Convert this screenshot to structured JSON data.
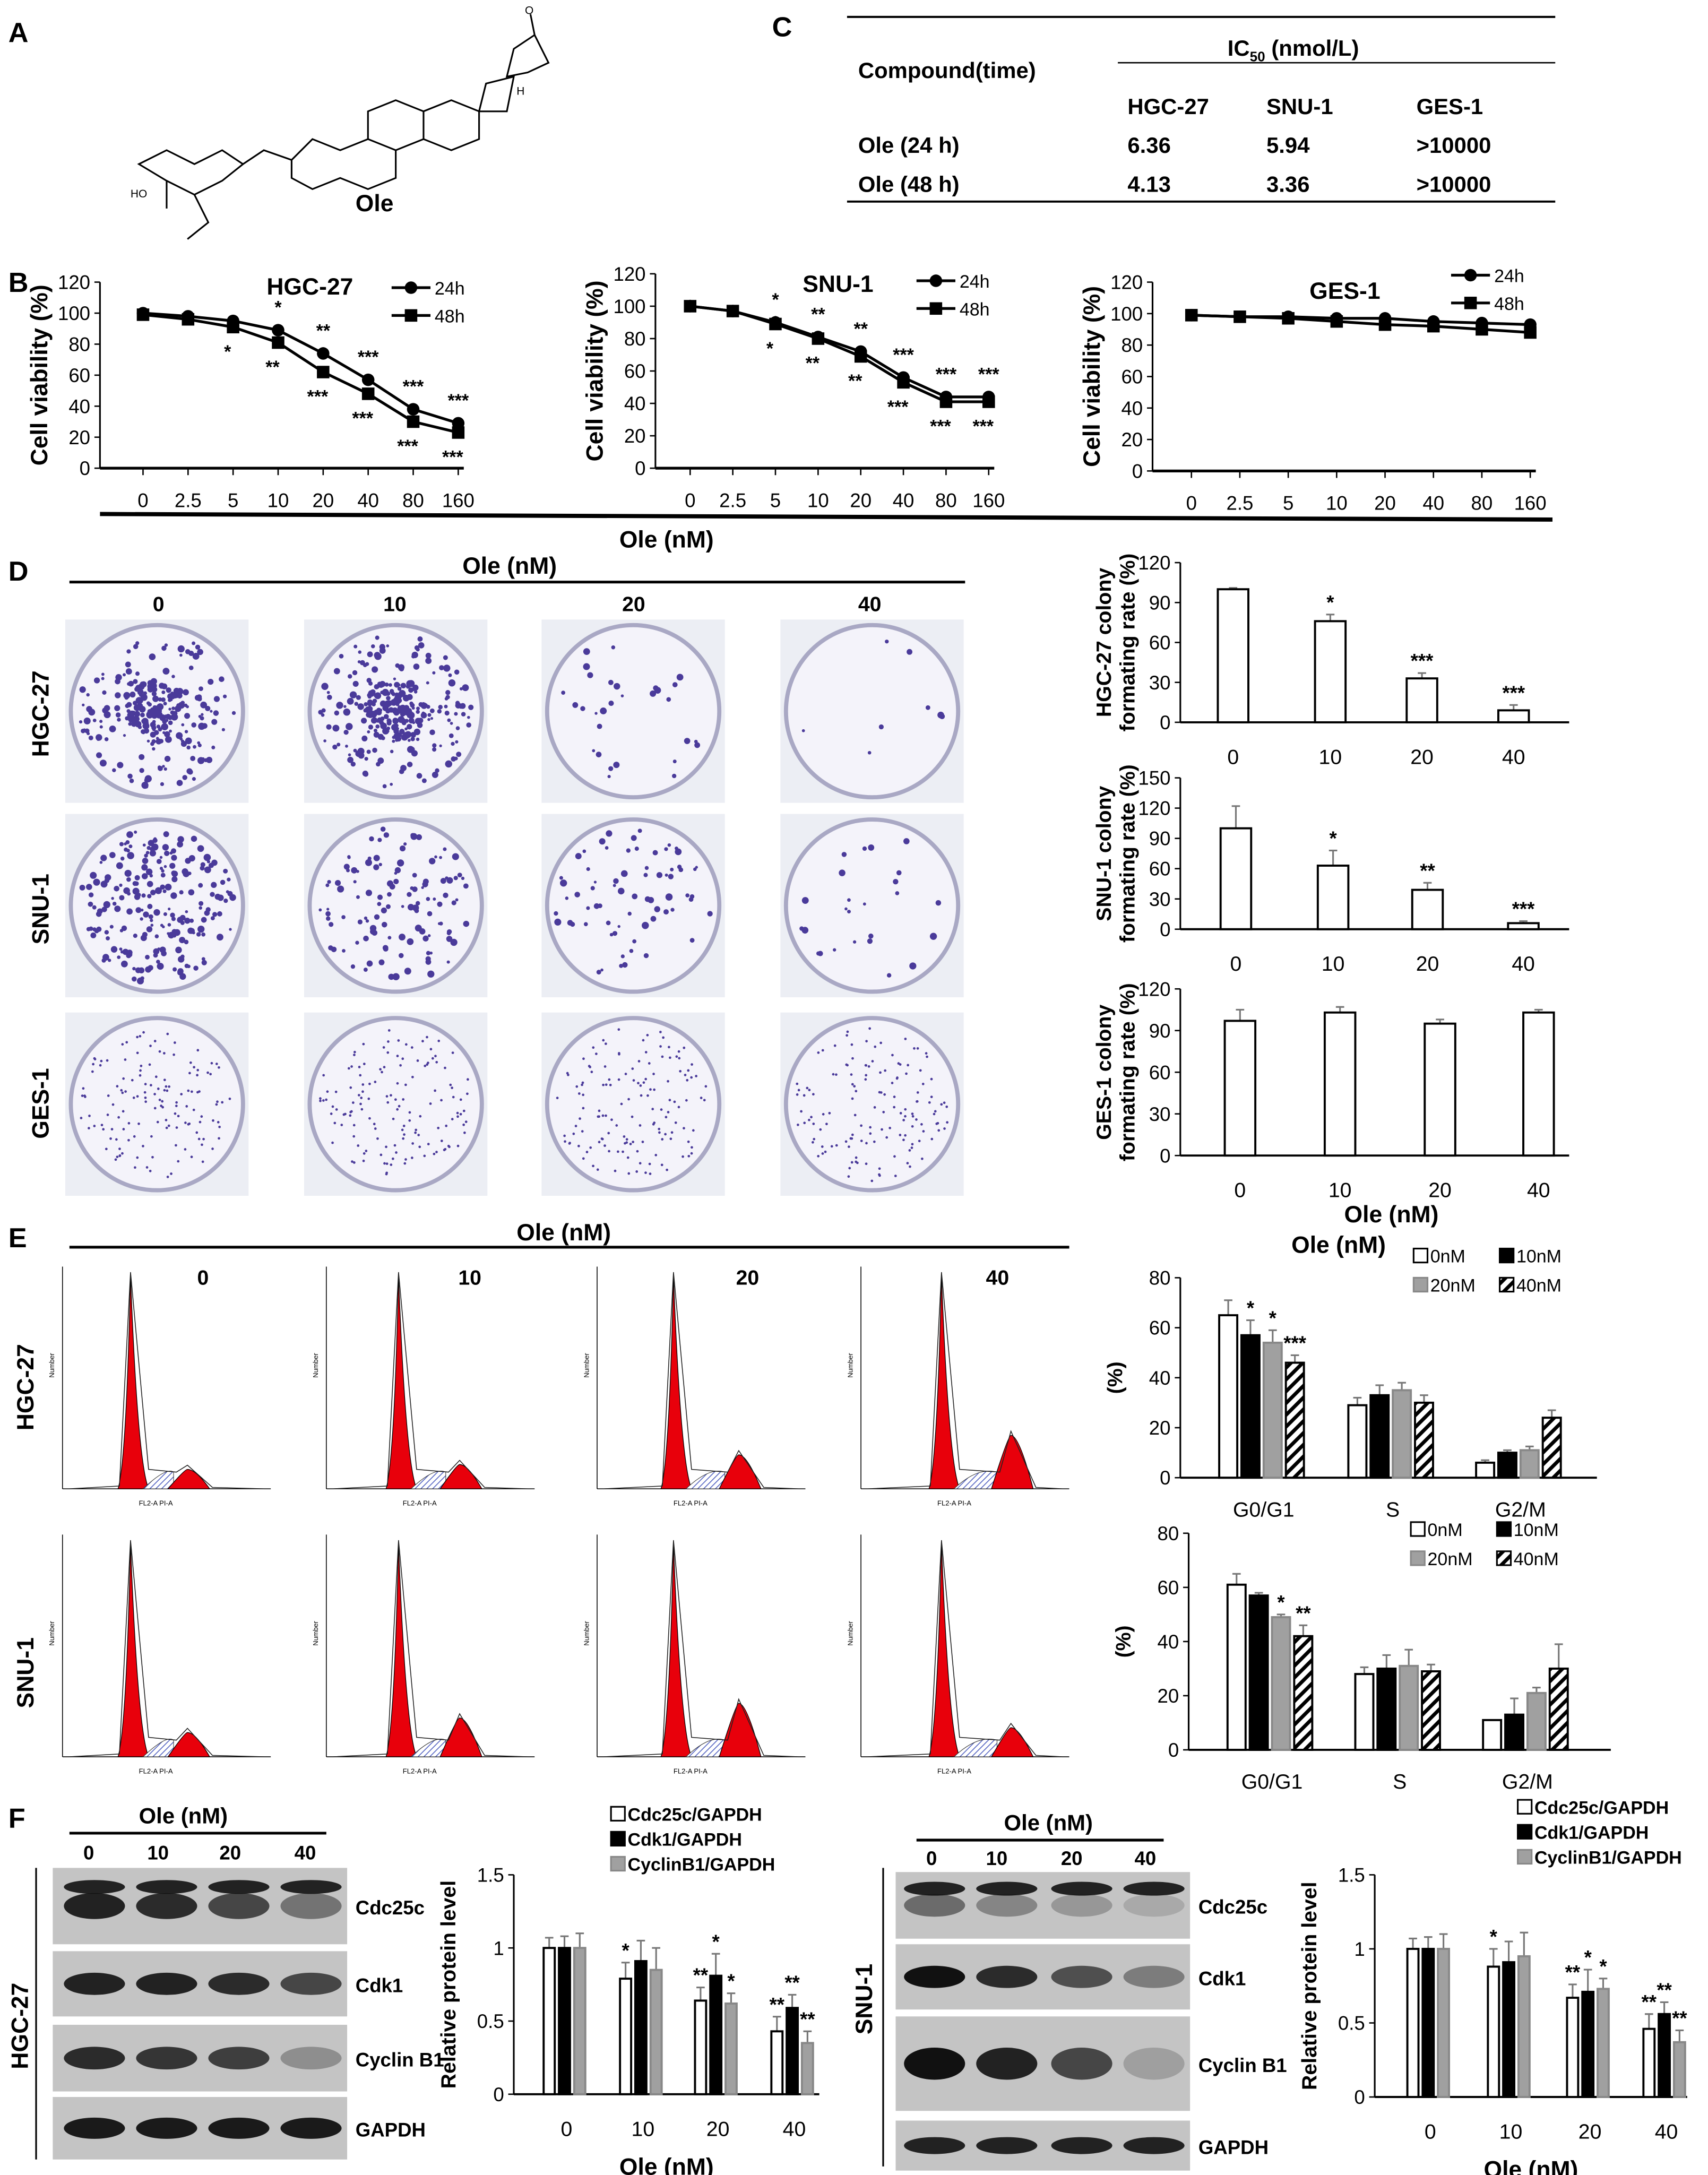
{
  "panels": {
    "A": "A",
    "B": "B",
    "C": "C",
    "D": "D",
    "E": "E",
    "F": "F"
  },
  "structure": {
    "name": "Ole",
    "atom_o": "O",
    "atom_ho": "HO",
    "atom_h": "H"
  },
  "ic50_table": {
    "compound_header": "Compound(time)",
    "ic_header_main": "IC",
    "ic_header_sub": "50",
    "ic_header_unit": " (nmol/L)",
    "columns": [
      "HGC-27",
      "SNU-1",
      "GES-1"
    ],
    "rows": [
      {
        "label": "Ole (24 h)",
        "values": [
          "6.36",
          "5.94",
          ">10000"
        ]
      },
      {
        "label": "Ole (48 h)",
        "values": [
          "4.13",
          "3.36",
          ">10000"
        ]
      }
    ]
  },
  "panel_b": {
    "xlabel": "Ole (nM)"
  },
  "panel_d": {
    "header": "Ole (nM)",
    "doses": [
      "0",
      "10",
      "20",
      "40"
    ],
    "rows": [
      "HGC-27",
      "SNU-1",
      "GES-1"
    ],
    "xlabel": "Ole (nM)"
  },
  "panel_e": {
    "header": "Ole (nM)",
    "doses": [
      "0",
      "10",
      "20",
      "40"
    ],
    "rows": [
      "HGC-27",
      "SNU-1"
    ],
    "chart_header": "Ole (nM)",
    "axis_label_x": "FL2-A PI-A",
    "axis_label_y": "Number"
  },
  "panel_f": {
    "hgc": {
      "header": "Ole (nM)",
      "doses": [
        "0",
        "10",
        "20",
        "40"
      ],
      "cell": "HGC-27",
      "bands": [
        "Cdc25c",
        "Cdk1",
        "Cyclin B1",
        "GAPDH"
      ]
    },
    "snu": {
      "header": "Ole (nM)",
      "doses": [
        "0",
        "10",
        "20",
        "40"
      ],
      "cell": "SNU-1",
      "bands": [
        "Cdc25c",
        "Cdk1",
        "Cyclin B1",
        "GAPDH"
      ]
    }
  },
  "colors": {
    "flow_peak": "#e8000b",
    "dish_stain": "#4a3a9a",
    "bar_gray": "#a0a0a0"
  },
  "chart_data": [
    {
      "id": "b-hgc",
      "type": "line",
      "title": "HGC-27",
      "ylabel": "Cell  viability (%)",
      "xlabel": "Ole (nM)",
      "categories": [
        "0",
        "2.5",
        "5",
        "10",
        "20",
        "40",
        "80",
        "160"
      ],
      "ylim": [
        0,
        120
      ],
      "yticks": [
        0,
        20,
        40,
        60,
        80,
        100,
        120
      ],
      "series": [
        {
          "name": "24h",
          "marker": "circle",
          "values": [
            100,
            98,
            95,
            89,
            74,
            57,
            38,
            29
          ],
          "error": [
            2,
            2,
            3,
            4,
            4,
            4,
            4,
            3
          ],
          "sig": [
            "",
            "",
            "",
            "*",
            "**",
            "***",
            "***",
            "***"
          ]
        },
        {
          "name": "48h",
          "marker": "square",
          "values": [
            99,
            96,
            91,
            81,
            62,
            48,
            30,
            23
          ],
          "error": [
            2,
            2,
            3,
            3,
            3,
            3,
            3,
            3
          ],
          "sig": [
            "",
            "",
            "*",
            "**",
            "***",
            "***",
            "***",
            "***"
          ]
        }
      ]
    },
    {
      "id": "b-snu",
      "type": "line",
      "title": "SNU-1",
      "ylabel": "Cell  viability (%)",
      "xlabel": "Ole (nM)",
      "categories": [
        "0",
        "2.5",
        "5",
        "10",
        "20",
        "40",
        "80",
        "160"
      ],
      "ylim": [
        0,
        120
      ],
      "yticks": [
        0,
        20,
        40,
        60,
        80,
        100,
        120
      ],
      "series": [
        {
          "name": "24h",
          "marker": "circle",
          "values": [
            100,
            97,
            90,
            81,
            72,
            56,
            44,
            44
          ],
          "error": [
            4,
            2,
            4,
            2,
            2,
            2,
            2,
            3
          ],
          "sig": [
            "",
            "",
            "*",
            "**",
            "**",
            "***",
            "***",
            "***"
          ]
        },
        {
          "name": "48h",
          "marker": "square",
          "values": [
            100,
            97,
            89,
            80,
            69,
            53,
            41,
            41
          ],
          "error": [
            3,
            2,
            3,
            2,
            2,
            2,
            2,
            2
          ],
          "sig": [
            "",
            "",
            "*",
            "**",
            "**",
            "***",
            "***",
            "***"
          ]
        }
      ]
    },
    {
      "id": "b-ges",
      "type": "line",
      "title": "GES-1",
      "ylabel": "Cell  viability (%)",
      "xlabel": "Ole (nM)",
      "categories": [
        "0",
        "2.5",
        "5",
        "10",
        "20",
        "40",
        "80",
        "160"
      ],
      "ylim": [
        0,
        120
      ],
      "yticks": [
        0,
        20,
        40,
        60,
        80,
        100,
        120
      ],
      "series": [
        {
          "name": "24h",
          "marker": "circle",
          "values": [
            99,
            98,
            98,
            97,
            97,
            95,
            94,
            93
          ],
          "error": [
            2,
            2,
            3,
            3,
            4,
            3,
            3,
            3
          ],
          "sig": [
            "",
            "",
            "",
            "",
            "",
            "",
            "",
            ""
          ]
        },
        {
          "name": "48h",
          "marker": "square",
          "values": [
            99,
            98,
            97,
            95,
            93,
            92,
            90,
            88
          ],
          "error": [
            2,
            2,
            2,
            2,
            2,
            2,
            2,
            2
          ],
          "sig": [
            "",
            "",
            "",
            "",
            "",
            "",
            "",
            ""
          ]
        }
      ]
    },
    {
      "id": "d-hgc",
      "type": "bar",
      "ylabel": "HGC-27 colony\nformating rate (%)",
      "categories": [
        "0",
        "10",
        "20",
        "40"
      ],
      "ylim": [
        0,
        120
      ],
      "yticks": [
        0,
        30,
        60,
        90,
        120
      ],
      "values": [
        100,
        76,
        33,
        9
      ],
      "error": [
        1,
        5,
        4,
        4
      ],
      "sig": [
        "",
        "*",
        "***",
        "***"
      ]
    },
    {
      "id": "d-snu",
      "type": "bar",
      "ylabel": "SNU-1 colony\nformating rate (%)",
      "categories": [
        "0",
        "10",
        "20",
        "40"
      ],
      "ylim": [
        0,
        150
      ],
      "yticks": [
        0,
        30,
        60,
        90,
        120,
        150
      ],
      "values": [
        100,
        63,
        39,
        6
      ],
      "error": [
        22,
        15,
        7,
        2
      ],
      "sig": [
        "",
        "*",
        "**",
        "***"
      ]
    },
    {
      "id": "d-ges",
      "type": "bar",
      "ylabel": "GES-1 colony\nformating rate (%)",
      "xlabel": "Ole (nM)",
      "categories": [
        "0",
        "10",
        "20",
        "40"
      ],
      "ylim": [
        0,
        120
      ],
      "yticks": [
        0,
        30,
        60,
        90,
        120
      ],
      "values": [
        97,
        103,
        95,
        103
      ],
      "error": [
        8,
        4,
        3,
        2
      ],
      "sig": [
        "",
        "",
        "",
        ""
      ]
    },
    {
      "id": "e-hgc",
      "type": "bar",
      "ylabel": "(%)",
      "categories": [
        "G0/G1",
        "S",
        "G2/M"
      ],
      "ylim": [
        0,
        80
      ],
      "yticks": [
        0,
        20,
        40,
        60,
        80
      ],
      "series": [
        {
          "name": "0nM",
          "fill": "white",
          "values": [
            65,
            29,
            6
          ],
          "error": [
            6,
            3,
            1
          ],
          "sig": [
            "",
            "",
            ""
          ]
        },
        {
          "name": "10nM",
          "fill": "black",
          "values": [
            57,
            33,
            10
          ],
          "error": [
            6,
            4,
            1
          ],
          "sig": [
            "*",
            "",
            ""
          ]
        },
        {
          "name": "20nM",
          "fill": "gray",
          "values": [
            54,
            35,
            11
          ],
          "error": [
            5,
            3,
            1.5
          ],
          "sig": [
            "*",
            "",
            ""
          ]
        },
        {
          "name": "40nM",
          "fill": "hatch",
          "values": [
            46,
            30,
            24
          ],
          "error": [
            3,
            3,
            3
          ],
          "sig": [
            "***",
            "",
            ""
          ]
        }
      ]
    },
    {
      "id": "e-snu",
      "type": "bar",
      "ylabel": "(%)",
      "categories": [
        "G0/G1",
        "S",
        "G2/M"
      ],
      "ylim": [
        0,
        80
      ],
      "yticks": [
        0,
        20,
        40,
        60,
        80
      ],
      "series": [
        {
          "name": "0nM",
          "fill": "white",
          "values": [
            61,
            28,
            11
          ],
          "error": [
            4,
            2.5,
            0
          ],
          "sig": [
            "",
            "",
            ""
          ]
        },
        {
          "name": "10nM",
          "fill": "black",
          "values": [
            57,
            30,
            13
          ],
          "error": [
            1,
            5,
            6
          ],
          "sig": [
            "",
            "",
            ""
          ]
        },
        {
          "name": "20nM",
          "fill": "gray",
          "values": [
            49,
            31,
            21
          ],
          "error": [
            1,
            6,
            2
          ],
          "sig": [
            "*",
            "",
            ""
          ]
        },
        {
          "name": "40nM",
          "fill": "hatch",
          "values": [
            42,
            29,
            30
          ],
          "error": [
            4,
            2.5,
            9
          ],
          "sig": [
            "**",
            "",
            ""
          ]
        }
      ]
    },
    {
      "id": "f-hgc",
      "type": "bar",
      "ylabel": "Relative protein level",
      "xlabel": "Ole (nM)",
      "categories": [
        "0",
        "10",
        "20",
        "40"
      ],
      "ylim": [
        0,
        1.5
      ],
      "yticks": [
        0,
        0.5,
        1,
        1.5
      ],
      "series": [
        {
          "name": "Cdc25c/GAPDH",
          "fill": "white",
          "values": [
            1,
            0.79,
            0.64,
            0.43
          ],
          "error": [
            0.07,
            0.11,
            0.09,
            0.1
          ],
          "sig": [
            "",
            "*",
            "**",
            "**"
          ]
        },
        {
          "name": "Cdk1/GAPDH",
          "fill": "black",
          "values": [
            1,
            0.91,
            0.81,
            0.59
          ],
          "error": [
            0.08,
            0.14,
            0.15,
            0.09
          ],
          "sig": [
            "",
            "",
            "*",
            "**"
          ]
        },
        {
          "name": "CyclinB1/GAPDH",
          "fill": "gray",
          "values": [
            1,
            0.85,
            0.62,
            0.35
          ],
          "error": [
            0.1,
            0.15,
            0.07,
            0.08
          ],
          "sig": [
            "",
            "",
            "*",
            "**"
          ]
        }
      ]
    },
    {
      "id": "f-snu",
      "type": "bar",
      "ylabel": "Relative protein level",
      "xlabel": "Ole (nM)",
      "categories": [
        "0",
        "10",
        "20",
        "40"
      ],
      "ylim": [
        0,
        1.5
      ],
      "yticks": [
        0,
        0.5,
        1,
        1.5
      ],
      "series": [
        {
          "name": "Cdc25c/GAPDH",
          "fill": "white",
          "values": [
            1,
            0.88,
            0.67,
            0.46
          ],
          "error": [
            0.07,
            0.12,
            0.09,
            0.1
          ],
          "sig": [
            "",
            "*",
            "**",
            "**"
          ]
        },
        {
          "name": "Cdk1/GAPDH",
          "fill": "black",
          "values": [
            1,
            0.91,
            0.71,
            0.56
          ],
          "error": [
            0.08,
            0.14,
            0.15,
            0.08
          ],
          "sig": [
            "",
            "",
            "*",
            "**"
          ]
        },
        {
          "name": "CyclinB1/GAPDH",
          "fill": "gray",
          "values": [
            1,
            0.95,
            0.73,
            0.37
          ],
          "error": [
            0.1,
            0.16,
            0.07,
            0.08
          ],
          "sig": [
            "",
            "",
            "*",
            "**"
          ]
        }
      ]
    }
  ]
}
